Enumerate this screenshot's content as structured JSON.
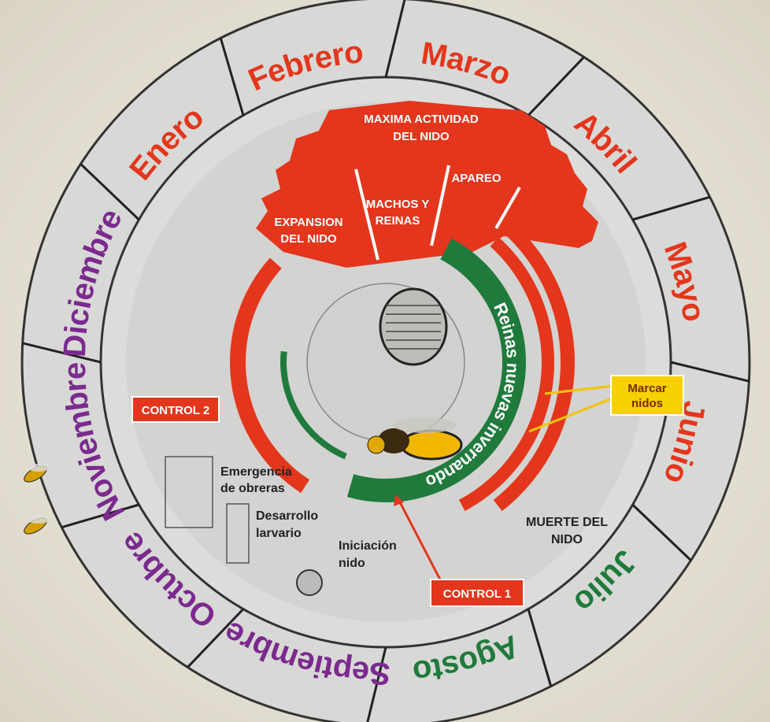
{
  "calendar": {
    "months": [
      {
        "name": "Enero",
        "color": "#e3361c"
      },
      {
        "name": "Febrero",
        "color": "#e3361c"
      },
      {
        "name": "Marzo",
        "color": "#e3361c"
      },
      {
        "name": "Abril",
        "color": "#e3361c"
      },
      {
        "name": "Mayo",
        "color": "#e3361c"
      },
      {
        "name": "Junio",
        "color": "#e3361c"
      },
      {
        "name": "Julio",
        "color": "#1f7a3c"
      },
      {
        "name": "Agosto",
        "color": "#1f7a3c"
      },
      {
        "name": "Septiembre",
        "color": "#7b2a8e"
      },
      {
        "name": "Octubre",
        "color": "#7b2a8e"
      },
      {
        "name": "Noviembre",
        "color": "#7b2a8e"
      },
      {
        "name": "Diciembre",
        "color": "#7b2a8e"
      }
    ]
  },
  "activity": {
    "maxima": [
      "MAXIMA ACTIVIDAD",
      "DEL NIDO"
    ],
    "expansion": [
      "EXPANSION",
      "DEL NIDO"
    ],
    "machos": [
      "MACHOS Y",
      "REINAS"
    ],
    "apareo": "APAREO"
  },
  "queens": "Reinas nuevas invernando",
  "controls": {
    "control_1": "CONTROL 1",
    "control_2": "CONTROL 2",
    "marcar": [
      "Marcar",
      "nidos"
    ]
  },
  "stages": {
    "emergencia": [
      "Emergencia",
      "de obreras"
    ],
    "desarrollo": [
      "Desarrollo",
      "larvario"
    ],
    "iniciacion": [
      "Iniciación",
      "nido"
    ],
    "muerte": [
      "MUERTE DEL",
      "NIDO"
    ]
  }
}
